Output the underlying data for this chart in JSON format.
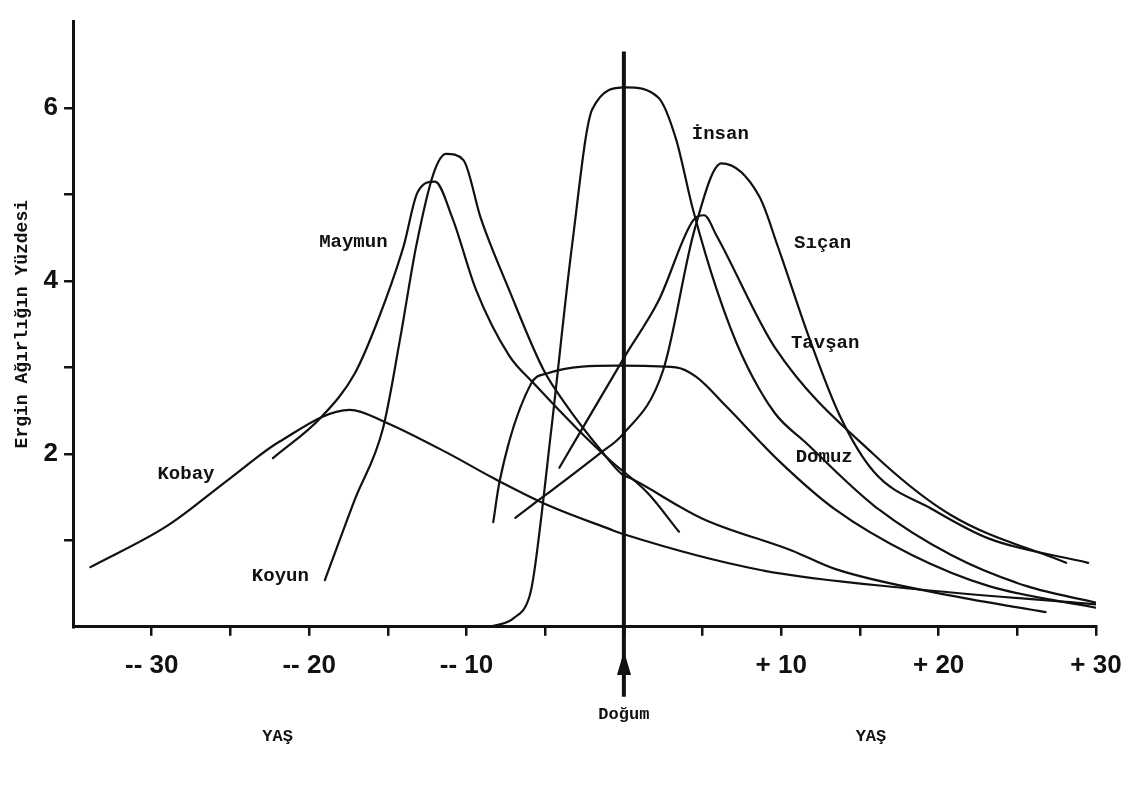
{
  "chart_data": {
    "type": "line",
    "xlabel": null,
    "ylabel": "Ergin Ağırlığın Yüzdesi",
    "xlim": [
      -35,
      30
    ],
    "xticks": [
      {
        "value": -30,
        "label": "-- 30"
      },
      {
        "value": -25,
        "label": null
      },
      {
        "value": -20,
        "label": "-- 20"
      },
      {
        "value": -15,
        "label": null
      },
      {
        "value": -10,
        "label": "-- 10"
      },
      {
        "value": -5,
        "label": null
      },
      {
        "value": 0,
        "label": null
      },
      {
        "value": 5,
        "label": null
      },
      {
        "value": 10,
        "label": "+ 10"
      },
      {
        "value": 15,
        "label": null
      },
      {
        "value": 20,
        "label": "+ 20"
      },
      {
        "value": 25,
        "label": null
      },
      {
        "value": 30,
        "label": "+ 30"
      }
    ],
    "ylim": [
      0,
      7
    ],
    "yticks": [
      {
        "value": 1,
        "label": null
      },
      2,
      {
        "value": 3,
        "label": null
      },
      4,
      {
        "value": 5,
        "label": null
      },
      6
    ],
    "grid": false,
    "legend": false,
    "marker": "none",
    "line_style": "solid",
    "ref_lines": [
      {
        "axis": "x",
        "value": 0,
        "label": "Doğum",
        "color": "#111111"
      }
    ],
    "annotations": [
      "YAŞ",
      "YAŞ"
    ],
    "series": [
      {
        "name": "Kobay",
        "color": "#111111",
        "x": [
          -33.9,
          -29,
          -25,
          -21.9,
          -17.4,
          -15.2,
          -11.1,
          -8.3,
          -5,
          -0.9,
          0,
          8.6,
          18.3,
          30
        ],
        "values": [
          0.69,
          1.17,
          1.72,
          2.14,
          2.51,
          2.37,
          2.0,
          1.72,
          1.42,
          1.13,
          1.07,
          0.66,
          0.44,
          0.26
        ]
      },
      {
        "name": "Maymun",
        "color": "#111111",
        "x": [
          -22.3,
          -19.2,
          -17.1,
          -15.6,
          -14,
          -13.1,
          -12,
          -10.9,
          -9.4,
          -7.3,
          -5.7,
          -2.8,
          -0.9,
          1.5,
          3.5
        ],
        "values": [
          1.95,
          2.43,
          2.93,
          3.56,
          4.4,
          5.03,
          5.15,
          4.73,
          3.9,
          3.14,
          2.81,
          2.26,
          1.93,
          1.55,
          1.1
        ]
      },
      {
        "name": "Koyun",
        "color": "#111111",
        "x": [
          -19,
          -17.1,
          -15.3,
          -14.2,
          -13.2,
          -12.1,
          -11.3,
          -10.2,
          -9.1,
          -7.3,
          -5.1,
          -3.8,
          -1.5,
          -0.1,
          0.4,
          5,
          10.7,
          13.4,
          20.8,
          26.8
        ],
        "values": [
          0.54,
          1.47,
          2.3,
          3.35,
          4.4,
          5.24,
          5.47,
          5.4,
          4.73,
          3.9,
          2.97,
          2.6,
          2.05,
          1.76,
          1.72,
          1.25,
          0.88,
          0.67,
          0.36,
          0.17
        ]
      },
      {
        "name": "İnsan",
        "color": "#111111",
        "x": [
          -8.5,
          -7,
          -6,
          -5.7,
          -4.6,
          -3.3,
          -2,
          0.1,
          2.2,
          3.3,
          4.4,
          5.9,
          7.5,
          9.6,
          11.5,
          15.9,
          20.8,
          25.6,
          30
        ],
        "values": [
          0,
          0.1,
          0.35,
          0.63,
          2.3,
          4.4,
          5.99,
          6.24,
          6.12,
          5.65,
          4.82,
          3.9,
          3.14,
          2.47,
          2.14,
          1.4,
          0.83,
          0.47,
          0.28
        ]
      },
      {
        "name": "Sıçan",
        "color": "#111111",
        "x": [
          -6.9,
          -1.5,
          -0.1,
          2.5,
          4.5,
          6.2,
          8.6,
          9.8,
          11.7,
          13.7,
          15.9,
          19.6,
          23.2,
          29.5
        ],
        "values": [
          1.26,
          2.01,
          2.22,
          2.97,
          4.6,
          5.36,
          4.98,
          4.39,
          3.38,
          2.45,
          1.79,
          1.36,
          1.02,
          0.74
        ]
      },
      {
        "name": "Tavşan",
        "color": "#111111",
        "x": [
          -4.1,
          0.1,
          2.2,
          4.4,
          5.1,
          5.9,
          9.6,
          15.9,
          20.8,
          28.1
        ],
        "values": [
          1.84,
          3.14,
          3.77,
          4.7,
          4.76,
          4.52,
          3.23,
          1.99,
          1.29,
          0.74
        ]
      },
      {
        "name": "Domuz",
        "color": "#111111",
        "x": [
          -8.3,
          -7.9,
          -5.9,
          -4.9,
          -0.4,
          3.3,
          4.6,
          6.5,
          9.9,
          13.4,
          18.3,
          23.2,
          30
        ],
        "values": [
          1.21,
          1.68,
          2.81,
          2.93,
          3.02,
          3.0,
          2.89,
          2.55,
          1.91,
          1.36,
          0.83,
          0.47,
          0.22
        ]
      }
    ]
  }
}
